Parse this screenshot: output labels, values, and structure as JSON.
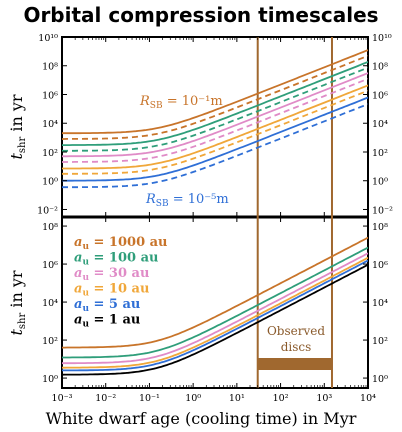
{
  "title": "Orbital compression timescales",
  "chart_data": {
    "type": "line",
    "xlabel": "White dwarf age (cooling time) in Myr",
    "xscale": "log",
    "xlim": [
      0.001,
      10000
    ],
    "x_tick_labels": [
      "10⁻³",
      "10⁻²",
      "10⁻¹",
      "10⁰",
      "10¹",
      "10²",
      "10³",
      "10⁴"
    ],
    "x_tick_values": [
      0.001,
      0.01,
      0.1,
      1,
      10,
      100,
      1000,
      10000
    ],
    "observed_discs": {
      "label_line1": "Observed",
      "label_line2": "discs",
      "x_range": [
        30,
        1500
      ],
      "color": "#a0682f"
    },
    "colors": {
      "au1000": "#c8742a",
      "au100": "#2f9e7a",
      "au30": "#e08bc7",
      "au10": "#f0a73a",
      "au5": "#2f6fd6",
      "au1": "#000000"
    },
    "panels": [
      {
        "ylabel": "t_shr in yr",
        "ylabel_main": "t",
        "ylabel_sub": "shr",
        "ylabel_rest": " in yr",
        "yscale": "log",
        "ylim": [
          0.003,
          10000000000
        ],
        "y_tick_labels": [
          "10⁻²",
          "10⁰",
          "10²",
          "10⁴",
          "10⁶",
          "10⁸",
          "10¹⁰"
        ],
        "y_tick_values": [
          0.01,
          1,
          100,
          10000,
          1000000,
          100000000,
          10000000000
        ],
        "annotations": [
          {
            "text_main": "R",
            "text_sub": "SB",
            "text_rest": " = 10⁻¹m",
            "color": "#c8742a"
          },
          {
            "text_main": "R",
            "text_sub": "SB",
            "text_rest": " = 10⁻⁵m",
            "color": "#2f6fd6"
          }
        ],
        "series": [
          {
            "color_key": "au1000",
            "style": "solid",
            "plateau": 2000
          },
          {
            "color_key": "au1000",
            "style": "dashed",
            "plateau": 800
          },
          {
            "color_key": "au100",
            "style": "solid",
            "plateau": 300
          },
          {
            "color_key": "au100",
            "style": "dashed",
            "plateau": 120
          },
          {
            "color_key": "au30",
            "style": "solid",
            "plateau": 50
          },
          {
            "color_key": "au30",
            "style": "dashed",
            "plateau": 20
          },
          {
            "color_key": "au10",
            "style": "solid",
            "plateau": 7
          },
          {
            "color_key": "au10",
            "style": "dashed",
            "plateau": 3
          },
          {
            "color_key": "au5",
            "style": "solid",
            "plateau": 1
          },
          {
            "color_key": "au5",
            "style": "dashed",
            "plateau": 0.35
          }
        ]
      },
      {
        "ylabel": "t_shr in yr",
        "ylabel_main": "t",
        "ylabel_sub": "shr",
        "ylabel_rest": " in yr",
        "yscale": "log",
        "ylim": [
          0.3,
          300000000
        ],
        "y_tick_labels": [
          "10⁰",
          "10²",
          "10⁴",
          "10⁶",
          "10⁸"
        ],
        "y_tick_values": [
          1,
          100,
          10000,
          1000000,
          100000000
        ],
        "legend": [
          {
            "color_key": "au1000",
            "main": "a",
            "sub": "u",
            "rest": " = 1000 au"
          },
          {
            "color_key": "au100",
            "main": "a",
            "sub": "u",
            "rest": " = 100 au"
          },
          {
            "color_key": "au30",
            "main": "a",
            "sub": "u",
            "rest": " = 30 au"
          },
          {
            "color_key": "au10",
            "main": "a",
            "sub": "u",
            "rest": " = 10 au"
          },
          {
            "color_key": "au5",
            "main": "a",
            "sub": "u",
            "rest": " = 5 au"
          },
          {
            "color_key": "au1",
            "main": "a",
            "sub": "u",
            "rest": " = 1 au"
          }
        ],
        "legend_placement": "top-left",
        "series": [
          {
            "color_key": "au1000",
            "style": "solid",
            "plateau": 40
          },
          {
            "color_key": "au100",
            "style": "solid",
            "plateau": 12
          },
          {
            "color_key": "au30",
            "style": "solid",
            "plateau": 6
          },
          {
            "color_key": "au10",
            "style": "solid",
            "plateau": 3.5
          },
          {
            "color_key": "au5",
            "style": "solid",
            "plateau": 2.5
          },
          {
            "color_key": "au1",
            "style": "solid",
            "plateau": 1.5
          }
        ]
      }
    ],
    "curve_model": "t = plateau * (1 + x/0.15)^1.2"
  }
}
